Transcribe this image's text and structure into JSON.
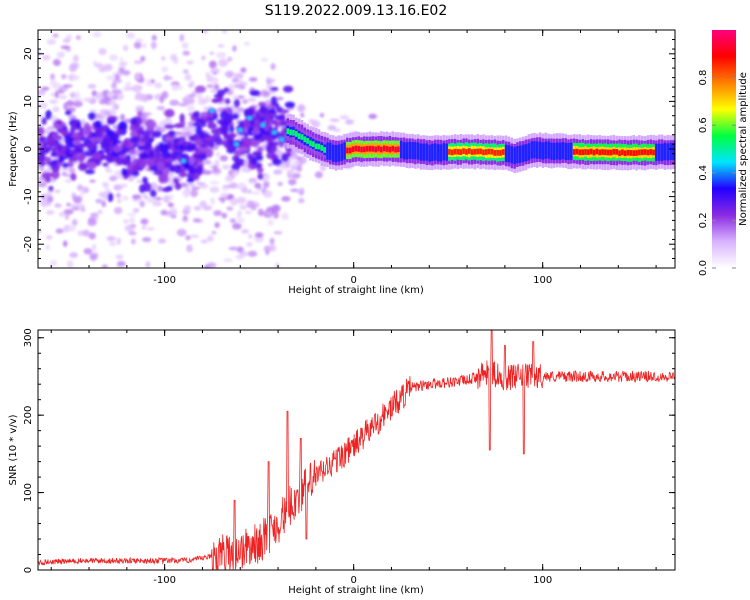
{
  "title": "S119.2022.009.13.16.E02",
  "chart_data": [
    {
      "type": "heatmap",
      "xlabel": "Height of straight line (km)",
      "ylabel": "Frequency (Hz)",
      "xlim": [
        -167,
        170
      ],
      "ylim": [
        -25,
        25
      ],
      "xticks": [
        -100,
        0,
        100
      ],
      "yticks": [
        -20,
        -10,
        0,
        10,
        20
      ],
      "grid": false,
      "colorbar": {
        "label": "Normalized spectral amplitude",
        "range": [
          0,
          1
        ],
        "ticks": [
          "0.0",
          "0.2",
          "0.4",
          "0.6",
          "0.8"
        ],
        "colors": [
          "#ffffff",
          "#d9b3ff",
          "#8a2be2",
          "#2200ff",
          "#00e5ff",
          "#00ff40",
          "#ffff00",
          "#ff8000",
          "#ff0000",
          "#ff007f"
        ]
      },
      "center_line": [
        {
          "x": -167,
          "f": 0.0
        },
        {
          "x": -140,
          "f": 0.5
        },
        {
          "x": -110,
          "f": -0.5
        },
        {
          "x": -88,
          "f": -2.5
        },
        {
          "x": -78,
          "f": 2.5
        },
        {
          "x": -72,
          "f": 7.5
        },
        {
          "x": -60,
          "f": 1.0
        },
        {
          "x": -45,
          "f": 4.5
        },
        {
          "x": -32,
          "f": 3.5
        },
        {
          "x": -22,
          "f": 1.0
        },
        {
          "x": -10,
          "f": -1.0
        },
        {
          "x": 0,
          "f": 0.0
        },
        {
          "x": 20,
          "f": 0.0
        },
        {
          "x": 40,
          "f": -0.8
        },
        {
          "x": 60,
          "f": -0.5
        },
        {
          "x": 80,
          "f": -0.8
        },
        {
          "x": 85,
          "f": -1.5
        },
        {
          "x": 95,
          "f": -0.2
        },
        {
          "x": 120,
          "f": -0.6
        },
        {
          "x": 150,
          "f": -0.8
        },
        {
          "x": 170,
          "f": -0.6
        }
      ]
    },
    {
      "type": "line",
      "xlabel": "Height of straight line (km)",
      "ylabel": "SNR (10 * v/v)",
      "xlim": [
        -167,
        170
      ],
      "ylim": [
        0,
        310
      ],
      "xticks": [
        -100,
        0,
        100
      ],
      "yticks": [
        0,
        100,
        200,
        300
      ],
      "grid": false,
      "color": "#ee2222",
      "series": [
        {
          "x": [
            -167,
            -140,
            -110,
            -90,
            -80,
            -70,
            -60,
            -50,
            -40,
            -30,
            -20,
            -10,
            0,
            10,
            20,
            30,
            40,
            60,
            72,
            80,
            90,
            100,
            120,
            150,
            170
          ],
          "values": [
            10,
            12,
            12,
            12,
            15,
            20,
            25,
            35,
            60,
            95,
            120,
            140,
            160,
            185,
            210,
            235,
            240,
            245,
            255,
            248,
            250,
            250,
            250,
            250,
            250
          ]
        }
      ],
      "spikes": [
        {
          "x": -63,
          "value": 90
        },
        {
          "x": -45,
          "value": 140
        },
        {
          "x": -35,
          "value": 205
        },
        {
          "x": -28,
          "value": 170
        },
        {
          "x": -25,
          "value": 40
        },
        {
          "x": 72,
          "value": 155
        },
        {
          "x": 73,
          "value": 310
        },
        {
          "x": 80,
          "value": 290
        },
        {
          "x": 90,
          "value": 150
        },
        {
          "x": 95,
          "value": 295
        }
      ]
    }
  ]
}
